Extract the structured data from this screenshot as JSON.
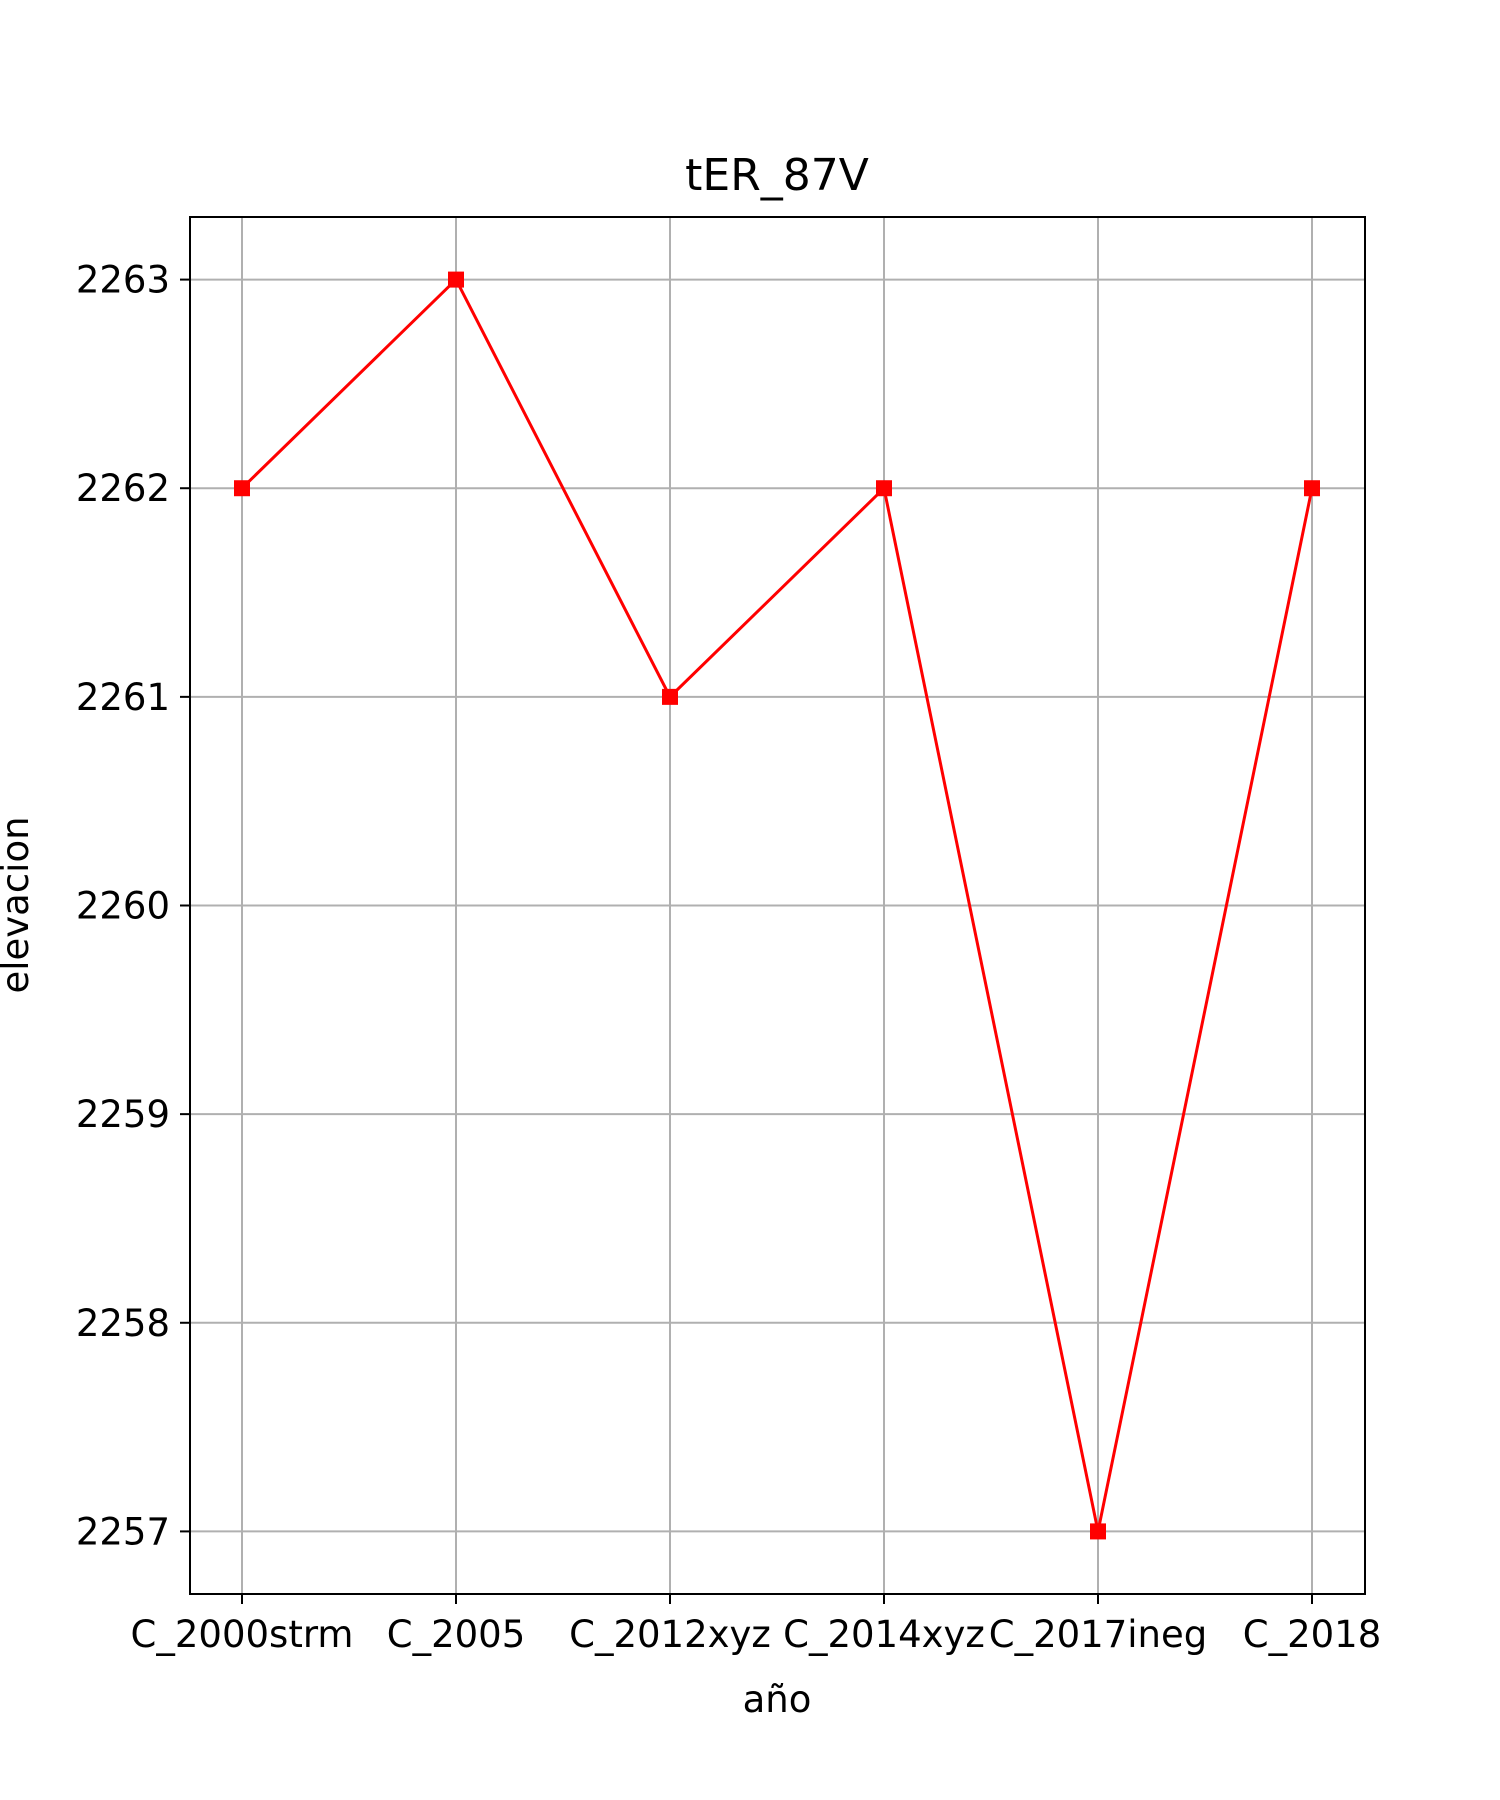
{
  "chart_data": {
    "type": "line",
    "title": "tER_87V",
    "xlabel": "año",
    "ylabel": "elevacion",
    "categories": [
      "C_2000strm",
      "C_2005",
      "C_2012xyz",
      "C_2014xyz",
      "C_2017ineg",
      "C_2018"
    ],
    "series": [
      {
        "values": [
          2262,
          2263,
          2261,
          2262,
          2257,
          2262
        ],
        "color": "#ff0000",
        "marker": "square"
      }
    ],
    "yticks": [
      2257,
      2258,
      2259,
      2260,
      2261,
      2262,
      2263
    ],
    "ylim": [
      2256.7,
      2263.3
    ],
    "grid": true,
    "grid_color": "#b0b0b0"
  }
}
